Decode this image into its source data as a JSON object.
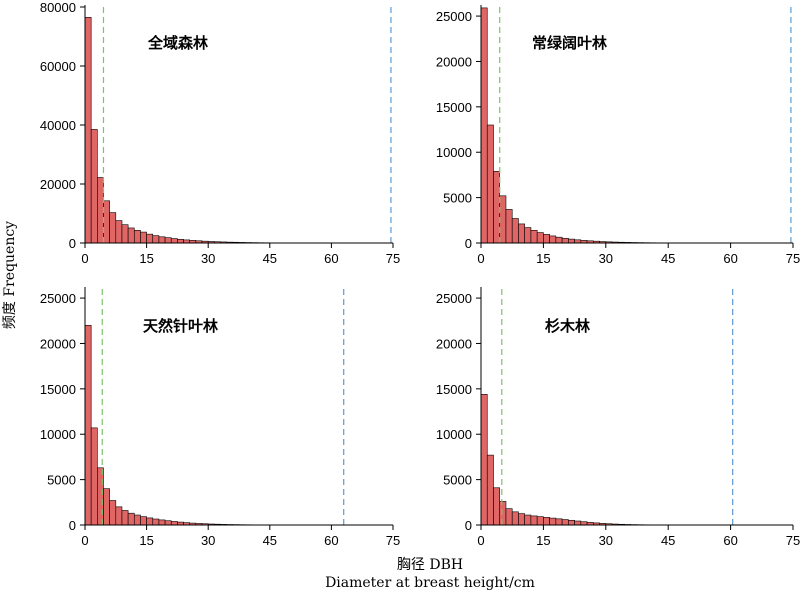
{
  "figure": {
    "ylabel": "频度 Frequency",
    "xlabel_cn": "胸径 DBH",
    "xlabel_en": "Diameter at breast height/cm"
  },
  "colors": {
    "bar": "#e06666",
    "bar_edge": "#000000",
    "green_line": "#7cc36a",
    "blue_line": "#5b9bd5"
  },
  "chart_data": [
    {
      "type": "bar",
      "title": "全域森林",
      "bin_width": 1.5,
      "bin_start": 0,
      "values": [
        76500,
        38500,
        22200,
        14300,
        10300,
        7600,
        6200,
        5100,
        4300,
        3700,
        3000,
        2500,
        2100,
        1800,
        1500,
        1250,
        1050,
        900,
        750,
        620,
        520,
        430,
        360,
        300,
        250,
        200,
        160,
        130,
        100,
        80,
        60,
        50,
        40,
        30,
        25,
        20,
        15,
        10,
        8,
        5
      ],
      "green_line_x": 4.5,
      "blue_line_x": 74.5,
      "xlim": [
        0,
        75
      ],
      "ylim": [
        0,
        80000
      ],
      "xticks": [
        0,
        15,
        30,
        45,
        60,
        75
      ],
      "yticks": [
        0,
        20000,
        40000,
        60000,
        80000
      ]
    },
    {
      "type": "bar",
      "title": "常绿阔叶林",
      "bin_width": 1.5,
      "bin_start": 0,
      "values": [
        25900,
        13000,
        7900,
        5200,
        3700,
        2700,
        2100,
        1700,
        1400,
        1150,
        950,
        780,
        640,
        520,
        430,
        350,
        290,
        240,
        200,
        160,
        130,
        105,
        85,
        70,
        55,
        45,
        35,
        28,
        22,
        17,
        13,
        10,
        8,
        6,
        5
      ],
      "green_line_x": 4.5,
      "blue_line_x": 74.5,
      "xlim": [
        0,
        75
      ],
      "ylim": [
        0,
        26000
      ],
      "xticks": [
        0,
        15,
        30,
        45,
        60,
        75
      ],
      "yticks": [
        0,
        5000,
        10000,
        15000,
        20000,
        25000
      ]
    },
    {
      "type": "bar",
      "title": "天然针叶林",
      "bin_width": 1.5,
      "bin_start": 0,
      "values": [
        22000,
        10700,
        6300,
        4000,
        2700,
        2000,
        1600,
        1300,
        1100,
        920,
        780,
        660,
        560,
        470,
        390,
        320,
        260,
        210,
        170,
        140,
        110,
        90,
        70,
        55,
        45,
        35,
        28,
        22,
        17,
        13,
        10,
        8,
        6,
        5
      ],
      "green_line_x": 4.2,
      "blue_line_x": 63,
      "xlim": [
        0,
        75
      ],
      "ylim": [
        0,
        26000
      ],
      "xticks": [
        0,
        15,
        30,
        45,
        60,
        75
      ],
      "yticks": [
        0,
        5000,
        10000,
        15000,
        20000,
        25000
      ]
    },
    {
      "type": "bar",
      "title": "杉木林",
      "bin_width": 1.5,
      "bin_start": 0,
      "values": [
        14400,
        7700,
        4100,
        2600,
        1800,
        1450,
        1250,
        1100,
        1000,
        920,
        840,
        760,
        680,
        600,
        520,
        440,
        360,
        290,
        230,
        180,
        140,
        105,
        80,
        60,
        45,
        33,
        24,
        17,
        12,
        8,
        5
      ],
      "green_line_x": 5.0,
      "blue_line_x": 60.5,
      "xlim": [
        0,
        75
      ],
      "ylim": [
        0,
        26000
      ],
      "xticks": [
        0,
        15,
        30,
        45,
        60,
        75
      ],
      "yticks": [
        0,
        5000,
        10000,
        15000,
        20000,
        25000
      ]
    }
  ]
}
